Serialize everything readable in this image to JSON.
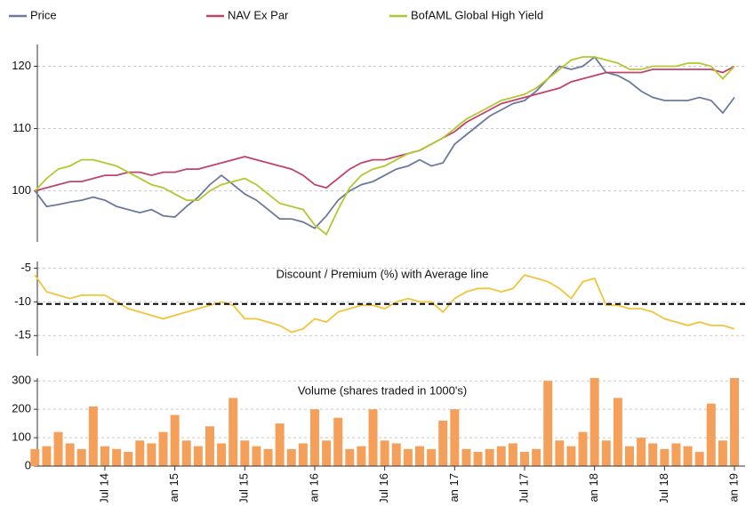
{
  "chart_data": [
    {
      "type": "line",
      "legend": "top",
      "grid": true,
      "ylim": [
        91.8,
        123.5
      ],
      "yticks": [
        100,
        110,
        120
      ],
      "series": [
        {
          "name": "Price",
          "color": "#6b7a9c",
          "values": [
            100,
            97.5,
            97.8,
            98.2,
            98.5,
            99,
            98.5,
            97.5,
            97,
            96.5,
            97,
            96,
            95.8,
            97.5,
            99,
            101,
            102.5,
            101,
            99.5,
            98.5,
            97,
            95.5,
            95.5,
            95,
            94,
            96,
            98.5,
            100,
            101,
            101.5,
            102.5,
            103.5,
            104,
            105,
            104,
            104.5,
            107.5,
            109,
            110.5,
            112,
            113,
            114,
            114.5,
            116,
            118,
            120,
            119.5,
            120,
            121.5,
            119,
            118.5,
            117.5,
            116,
            115,
            114.5,
            114.5,
            114.5,
            115,
            114.5,
            112.5,
            115
          ]
        },
        {
          "name": "NAV Ex Par",
          "color": "#c0426e",
          "values": [
            100,
            100.5,
            101,
            101.5,
            101.5,
            102,
            102.5,
            102.5,
            103,
            103,
            102.5,
            103,
            103,
            103.5,
            103.5,
            104,
            104.5,
            105,
            105.5,
            105,
            104.5,
            104,
            103.5,
            102.5,
            101,
            100.5,
            102,
            103.5,
            104.5,
            105,
            105,
            105.5,
            106,
            106.5,
            107.5,
            108.5,
            109.5,
            111,
            112,
            113,
            114,
            114.5,
            115,
            115.5,
            116,
            116.5,
            117.5,
            118,
            118.5,
            119,
            119,
            119,
            119,
            119.5,
            119.5,
            119.5,
            119.5,
            119.5,
            119.5,
            119,
            120
          ]
        },
        {
          "name": "BofAML Global High Yield",
          "color": "#b5c730",
          "values": [
            100,
            102,
            103.5,
            104,
            105,
            105,
            104.5,
            104,
            103,
            102,
            101,
            100.5,
            99.5,
            98.5,
            98.5,
            100,
            101,
            101.5,
            102,
            101,
            99.5,
            98,
            97.5,
            97,
            94.5,
            93,
            97,
            100.5,
            102.5,
            103.5,
            104,
            105,
            106,
            106.5,
            107.5,
            108.5,
            110,
            111.5,
            112.5,
            113.5,
            114.5,
            115,
            115.5,
            116.5,
            118,
            119.5,
            121,
            121.5,
            121.5,
            121,
            120.5,
            119.5,
            119.5,
            120,
            120,
            120,
            120.5,
            120.5,
            120,
            118,
            120
          ]
        }
      ]
    },
    {
      "type": "line",
      "title": "Discount / Premium (%) with Average line",
      "grid": true,
      "ylim": [
        -18,
        -4
      ],
      "yticks": [
        -15,
        -10,
        -5
      ],
      "average": -10.3,
      "series": [
        {
          "color": "#f2c43c",
          "values": [
            -6,
            -8.5,
            -9,
            -9.5,
            -9,
            -9,
            -9,
            -10,
            -11,
            -11.5,
            -12,
            -12.5,
            -12,
            -11.5,
            -11,
            -10.5,
            -10,
            -10.5,
            -12.5,
            -12.5,
            -13,
            -13.5,
            -14.5,
            -14,
            -12.5,
            -13,
            -11.5,
            -11,
            -10.5,
            -10.5,
            -11,
            -10,
            -9.5,
            -10,
            -10,
            -11.5,
            -9.5,
            -8.5,
            -8,
            -8,
            -8.5,
            -8,
            -6,
            -6.5,
            -7,
            -8,
            -9.5,
            -7,
            -6.5,
            -10.5,
            -10.5,
            -11,
            -11,
            -11.5,
            -12.5,
            -13,
            -13.5,
            -13,
            -13.5,
            -13.5,
            -14
          ]
        }
      ]
    },
    {
      "type": "bar",
      "title": "Volume  (shares traded in 1000's)",
      "grid": true,
      "ylim": [
        0,
        310
      ],
      "yticks": [
        0,
        100,
        200,
        300
      ],
      "color": "#f5a05a",
      "categories": [
        null,
        null,
        null,
        null,
        null,
        null,
        "Jul 14",
        null,
        null,
        null,
        null,
        null,
        "Jan 15",
        null,
        null,
        null,
        null,
        null,
        "Jul 15",
        null,
        null,
        null,
        null,
        null,
        "Jan 16",
        null,
        null,
        null,
        null,
        null,
        "Jul 16",
        null,
        null,
        null,
        null,
        null,
        "Jan 17",
        null,
        null,
        null,
        null,
        null,
        "Jul 17",
        null,
        null,
        null,
        null,
        null,
        "Jan 18",
        null,
        null,
        null,
        null,
        null,
        "Jul 18",
        null,
        null,
        null,
        null,
        null,
        "Jan 19"
      ],
      "values": [
        60,
        70,
        120,
        80,
        60,
        210,
        70,
        60,
        50,
        90,
        80,
        120,
        180,
        90,
        70,
        140,
        80,
        240,
        90,
        70,
        60,
        150,
        60,
        80,
        200,
        90,
        170,
        60,
        70,
        200,
        90,
        80,
        60,
        70,
        60,
        160,
        200,
        60,
        50,
        60,
        70,
        80,
        50,
        60,
        300,
        90,
        70,
        120,
        310,
        90,
        240,
        70,
        100,
        80,
        60,
        80,
        70,
        50,
        220,
        90,
        310
      ]
    }
  ]
}
